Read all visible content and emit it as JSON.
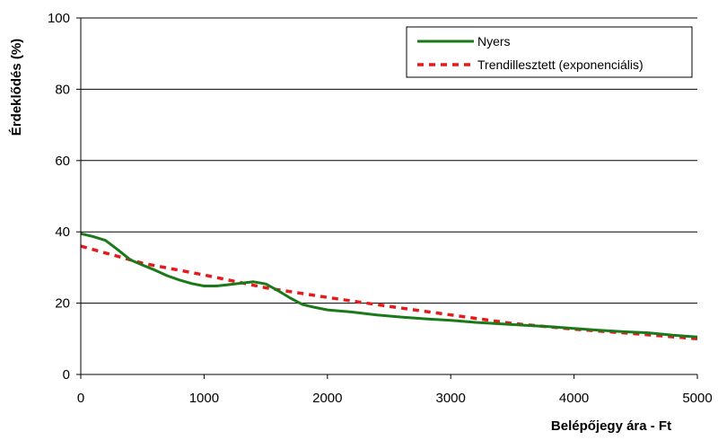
{
  "chart_data": {
    "type": "line",
    "title": "",
    "xlabel": "Belépőjegy ára - Ft",
    "ylabel": "Érdeklődés (%)",
    "xlim": [
      0,
      5000
    ],
    "ylim": [
      0,
      100
    ],
    "xticks": [
      "0",
      "1000",
      "2000",
      "3000",
      "4000",
      "5000"
    ],
    "yticks": [
      "0",
      "20",
      "40",
      "60",
      "80",
      "100"
    ],
    "grid": "horizontal",
    "legend_position": "top-right",
    "series": [
      {
        "name": "Nyers",
        "color": "#1a7a1a",
        "style": "solid",
        "x": [
          0,
          100,
          200,
          300,
          400,
          500,
          600,
          700,
          800,
          900,
          1000,
          1100,
          1200,
          1300,
          1400,
          1500,
          1600,
          1700,
          1800,
          1900,
          2000,
          2200,
          2400,
          2600,
          2800,
          3000,
          3200,
          3400,
          3600,
          3800,
          4000,
          4200,
          4400,
          4600,
          4800,
          5000
        ],
        "y": [
          39.5,
          38.7,
          37.6,
          35,
          32.2,
          30.7,
          29.3,
          27.7,
          26.5,
          25.5,
          24.8,
          24.8,
          25.2,
          25.6,
          26,
          25.4,
          23.5,
          21.4,
          19.6,
          18.8,
          18.1,
          17.5,
          16.7,
          16.1,
          15.6,
          15.2,
          14.6,
          14.2,
          13.8,
          13.4,
          12.9,
          12.4,
          12,
          11.7,
          11,
          10.5
        ]
      },
      {
        "name": "Trendillesztett (exponenciális)",
        "color": "#e41a1c",
        "style": "dashed",
        "x": [
          0,
          500,
          1000,
          1500,
          2000,
          2500,
          3000,
          3500,
          4000,
          4500,
          5000
        ],
        "y": [
          36,
          31.2,
          27.9,
          24.3,
          21.6,
          19.1,
          16.7,
          14.3,
          12.7,
          11.4,
          10
        ]
      }
    ]
  }
}
